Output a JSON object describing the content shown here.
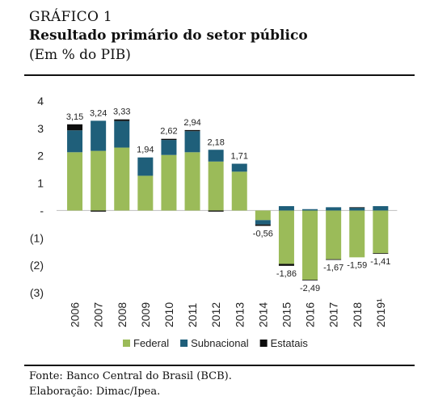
{
  "header": {
    "label": "GRÁFICO 1",
    "title": "Resultado primário do setor público",
    "unit": "(Em % do PIB)"
  },
  "footer": {
    "source": "Fonte: Banco Central do Brasil (BCB).",
    "elaboration": "Elaboração: Dimac/Ipea."
  },
  "chart_data": {
    "type": "bar",
    "stacked": true,
    "categories": [
      "2006",
      "2007",
      "2008",
      "2009",
      "2010",
      "2011",
      "2012",
      "2013",
      "2014",
      "2015",
      "2016",
      "2017",
      "2018",
      "2019¹"
    ],
    "series": [
      {
        "name": "Federal",
        "color": "#9bbb59",
        "values": [
          2.13,
          2.18,
          2.3,
          1.27,
          2.03,
          2.13,
          1.79,
          1.42,
          -0.35,
          -1.95,
          -2.53,
          -1.78,
          -1.71,
          -1.56
        ]
      },
      {
        "name": "Subnacional",
        "color": "#1f5f7a",
        "values": [
          0.8,
          1.1,
          0.97,
          0.67,
          0.55,
          0.77,
          0.43,
          0.29,
          -0.16,
          0.16,
          0.05,
          0.12,
          0.1,
          0.16
        ]
      },
      {
        "name": "Estatais",
        "color": "#0d0d0d",
        "values": [
          0.22,
          -0.04,
          0.06,
          0.0,
          0.04,
          0.04,
          -0.04,
          0.0,
          -0.05,
          -0.07,
          -0.01,
          -0.01,
          0.02,
          -0.01
        ]
      }
    ],
    "totals": [
      "3,15",
      "3,24",
      "3,33",
      "1,94",
      "2,62",
      "2,94",
      "2,18",
      "1,71",
      "-0,56",
      "-1,86",
      "-2,49",
      "-1,67",
      "-1,59",
      "-1,41"
    ],
    "yticks": [
      {
        "value": 4,
        "label": "4"
      },
      {
        "value": 3,
        "label": "3"
      },
      {
        "value": 2,
        "label": "2"
      },
      {
        "value": 1,
        "label": "1"
      },
      {
        "value": 0,
        "label": "-"
      },
      {
        "value": -1,
        "label": "(1)"
      },
      {
        "value": -2,
        "label": "(2)"
      },
      {
        "value": -3,
        "label": "(3)"
      }
    ],
    "ylim": [
      -3,
      4
    ],
    "grid": false,
    "legend_position": "bottom"
  }
}
